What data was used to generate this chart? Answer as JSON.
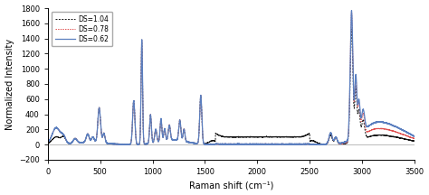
{
  "title": "",
  "xlabel": "Raman shift (cm⁻¹)",
  "ylabel": "Normalized Intensity",
  "xlim": [
    0,
    3500
  ],
  "ylim": [
    -200,
    1800
  ],
  "yticks": [
    -200,
    0,
    200,
    400,
    600,
    800,
    1000,
    1200,
    1400,
    1600,
    1800
  ],
  "xticks": [
    0,
    500,
    1000,
    1500,
    2000,
    2500,
    3000,
    3500
  ],
  "legend": [
    "DS=0.62",
    "DS=0.78",
    "DS=1.04"
  ],
  "line_colors": [
    "#5B7FBF",
    "#E05050",
    "#111111"
  ],
  "background": "#FFFFFF",
  "peaks": {
    "main_900": 1380,
    "ch_2900": 1700,
    "ch_2940": 800,
    "peak_820": 580,
    "peak_1460": 640,
    "peak_490": 460,
    "peak_1000": 380,
    "peak_1100": 300,
    "peak_1260": 270,
    "peak_380": 110,
    "peak_2700": 150
  }
}
